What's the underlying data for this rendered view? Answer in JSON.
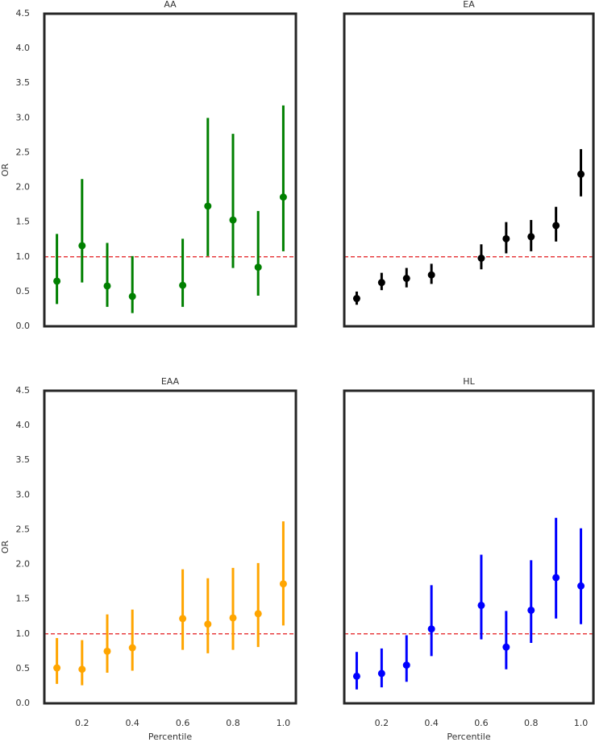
{
  "chart_data": [
    {
      "type": "errorbar",
      "title": "AA",
      "ylabel": "OR",
      "color": "#008000",
      "x": [
        0.1,
        0.2,
        0.3,
        0.4,
        0.6,
        0.7,
        0.8,
        0.9,
        1.0
      ],
      "values": [
        0.65,
        1.16,
        0.58,
        0.43,
        0.59,
        1.73,
        1.53,
        0.85,
        1.86
      ],
      "lower": [
        0.32,
        0.63,
        0.28,
        0.19,
        0.28,
        1.01,
        0.84,
        0.44,
        1.08
      ],
      "upper": [
        1.33,
        2.12,
        1.2,
        1.01,
        1.26,
        3.0,
        2.77,
        1.66,
        3.18
      ],
      "reference_line": 1,
      "reference_color": "#e41a1c",
      "xlim": [
        0.05,
        1.05
      ],
      "ylim": [
        0,
        4.5
      ],
      "yticks": [
        {
          "value": 0,
          "label": "0.0"
        },
        0.5,
        {
          "value": 1,
          "label": "1.0"
        },
        1.5,
        {
          "value": 2,
          "label": "2.0"
        },
        2.5,
        {
          "value": 3,
          "label": "3.0"
        },
        3.5,
        {
          "value": 4,
          "label": "4.0"
        },
        4.5
      ]
    },
    {
      "type": "errorbar",
      "title": "EA",
      "color": "#000000",
      "x": [
        0.1,
        0.2,
        0.3,
        0.4,
        0.6,
        0.7,
        0.8,
        0.9,
        1.0
      ],
      "values": [
        0.4,
        0.63,
        0.69,
        0.74,
        0.98,
        1.26,
        1.29,
        1.45,
        2.19
      ],
      "lower": [
        0.31,
        0.52,
        0.56,
        0.61,
        0.82,
        1.05,
        1.08,
        1.22,
        1.87
      ],
      "upper": [
        0.5,
        0.77,
        0.84,
        0.9,
        1.18,
        1.5,
        1.53,
        1.72,
        2.55
      ],
      "reference_line": 1,
      "reference_color": "#e41a1c",
      "xlim": [
        0.05,
        1.05
      ],
      "ylim": [
        0,
        4.5
      ]
    },
    {
      "type": "errorbar",
      "title": "EAA",
      "ylabel": "OR",
      "xlabel": "Percentile",
      "color": "#ffa500",
      "x": [
        0.1,
        0.2,
        0.3,
        0.4,
        0.6,
        0.7,
        0.8,
        0.9,
        1.0
      ],
      "values": [
        0.51,
        0.49,
        0.75,
        0.8,
        1.22,
        1.14,
        1.23,
        1.29,
        1.72
      ],
      "lower": [
        0.28,
        0.26,
        0.44,
        0.47,
        0.77,
        0.72,
        0.77,
        0.81,
        1.12
      ],
      "upper": [
        0.94,
        0.91,
        1.28,
        1.35,
        1.93,
        1.8,
        1.95,
        2.02,
        2.62
      ],
      "reference_line": 1,
      "reference_color": "#e41a1c",
      "xlim": [
        0.05,
        1.05
      ],
      "ylim": [
        0,
        4.5
      ],
      "xticks": [
        0.2,
        0.4,
        0.6,
        0.8,
        {
          "value": 1,
          "label": "1.0"
        }
      ],
      "yticks": [
        {
          "value": 0,
          "label": "0.0"
        },
        0.5,
        {
          "value": 1,
          "label": "1.0"
        },
        1.5,
        {
          "value": 2,
          "label": "2.0"
        },
        2.5,
        {
          "value": 3,
          "label": "3.0"
        },
        3.5,
        {
          "value": 4,
          "label": "4.0"
        },
        4.5
      ]
    },
    {
      "type": "errorbar",
      "title": "HL",
      "xlabel": "Percentile",
      "color": "#0000ff",
      "x": [
        0.1,
        0.2,
        0.3,
        0.4,
        0.6,
        0.7,
        0.8,
        0.9,
        1.0
      ],
      "values": [
        0.39,
        0.43,
        0.55,
        1.07,
        1.41,
        0.81,
        1.34,
        1.81,
        1.69
      ],
      "lower": [
        0.2,
        0.23,
        0.31,
        0.68,
        0.92,
        0.49,
        0.87,
        1.22,
        1.14
      ],
      "upper": [
        0.74,
        0.79,
        0.98,
        1.7,
        2.14,
        1.33,
        2.06,
        2.67,
        2.52
      ],
      "reference_line": 1,
      "reference_color": "#e41a1c",
      "xlim": [
        0.05,
        1.05
      ],
      "ylim": [
        0,
        4.5
      ],
      "xticks": [
        0.2,
        0.4,
        0.6,
        0.8,
        {
          "value": 1,
          "label": "1.0"
        }
      ]
    }
  ]
}
